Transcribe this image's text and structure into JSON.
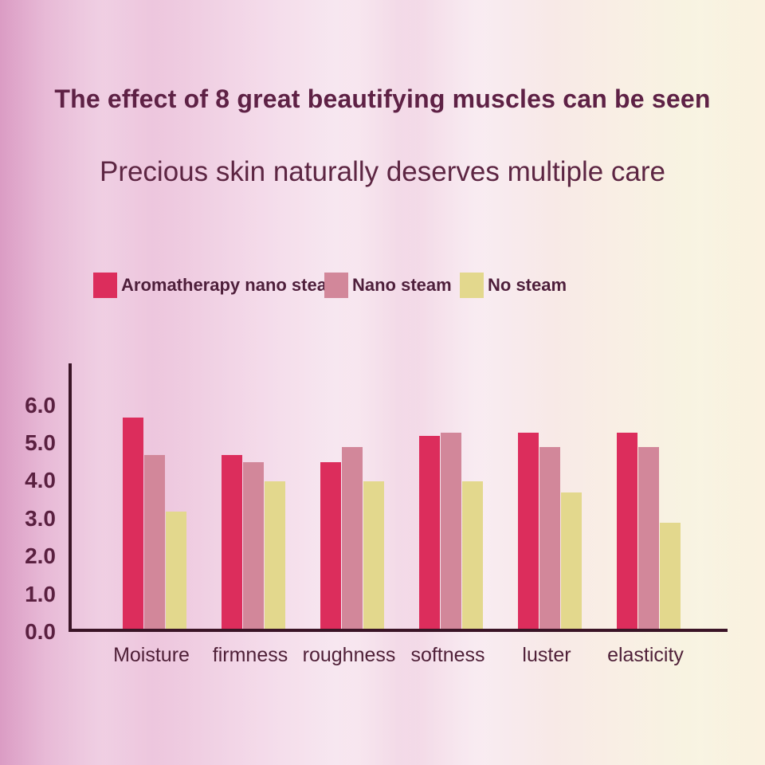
{
  "header": {
    "title": "The effect of 8 great beautifying muscles can be seen",
    "subtitle": "Precious skin naturally deserves multiple care"
  },
  "colors": {
    "title_text": "#5e2145",
    "subtitle_text": "#5d2643",
    "legend_text": "#4e1f3b",
    "axis_line": "#3a1426",
    "y_tick_text": "#5a2040",
    "x_tick_text": "#4f2038",
    "background_left": "#db9cc4",
    "background_right": "#faf2e0"
  },
  "chart_data": {
    "type": "bar",
    "title": "",
    "xlabel": "",
    "ylabel": "",
    "categories": [
      "Moisture",
      "firmness",
      "roughness",
      "softness",
      "luster",
      "elasticity"
    ],
    "series": [
      {
        "name": "Aromatherapy nano steam",
        "color": "#dc2d5c",
        "values": [
          5.6,
          4.6,
          4.4,
          5.1,
          5.2,
          5.2
        ]
      },
      {
        "name": "Nano steam",
        "color": "#d2879a",
        "values": [
          4.6,
          4.4,
          4.8,
          5.2,
          4.8,
          4.8
        ]
      },
      {
        "name": "No steam",
        "color": "#e3d88d",
        "values": [
          3.1,
          3.9,
          3.9,
          3.9,
          3.6,
          2.8
        ]
      }
    ],
    "ylim": [
      0,
      7
    ],
    "ytick_labels": [
      "0.0",
      "1.0",
      "2.0",
      "3.0",
      "4.0",
      "5.0",
      "6.0"
    ],
    "ytick_values": [
      0,
      1,
      2,
      3,
      4,
      5,
      6
    ],
    "grid": false,
    "legend_position": "top"
  }
}
